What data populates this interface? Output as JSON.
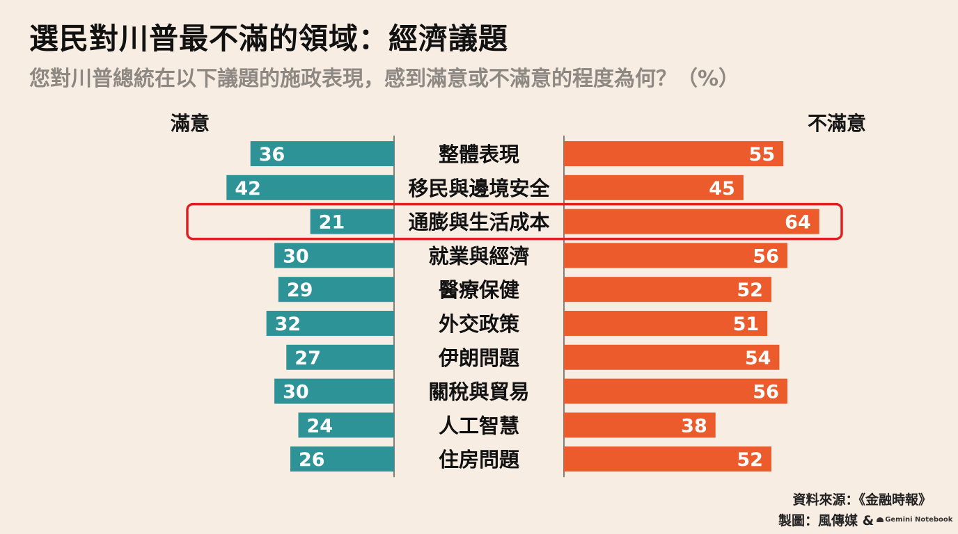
{
  "title": "選民對川普最不滿的領域：經濟議題",
  "subtitle": "您對川普總統在以下議題的施政表現，感到滿意或不滿意的程度為何？（%）",
  "footer": {
    "source": "資料來源：《金融時報》",
    "credit": "製圖：風傳媒 &",
    "gemini_label": "Gemini Notebook",
    "gemini_icon": "gemini-notebook-icon"
  },
  "colors": {
    "background": "#f8ede3",
    "satisfied": "#2e9396",
    "dissatisfied": "#ec5b2c",
    "highlight": "#e02020",
    "axis_line": "#5a5a5a"
  },
  "chart_data": {
    "type": "bar",
    "layout": "diverging",
    "categories": [
      "整體表現",
      "移民與邊境安全",
      "通膨與生活成本",
      "就業與經濟",
      "醫療保健",
      "外交政策",
      "伊朗問題",
      "關稅與貿易",
      "人工智慧",
      "住房問題"
    ],
    "series": [
      {
        "name": "滿意",
        "values": [
          36,
          42,
          21,
          30,
          29,
          32,
          27,
          30,
          24,
          26
        ]
      },
      {
        "name": "不滿意",
        "values": [
          55,
          45,
          64,
          56,
          52,
          51,
          54,
          56,
          38,
          52
        ]
      }
    ],
    "highlighted_category": "通膨與生活成本",
    "unit": "%",
    "legend": "top",
    "grid": false
  }
}
